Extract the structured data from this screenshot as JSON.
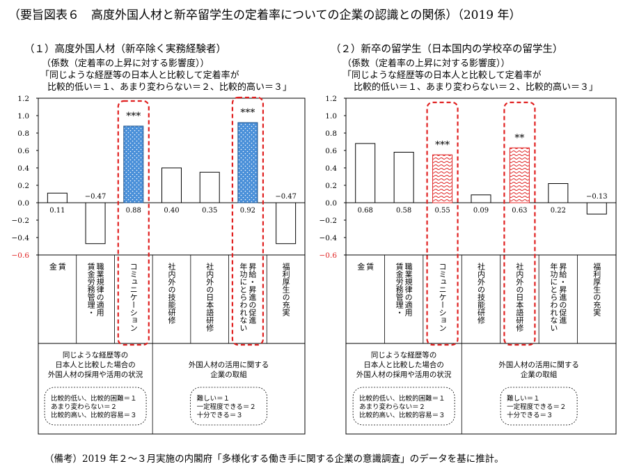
{
  "title": "（要旨図表６　高度外国人材と新卒留学生の定着率についての企業の認識との関係）（2019 年）",
  "note": "（備考）2019 年２～３月実施の内閣府「多様化する働き手に関する企業の意識調査」のデータを基に推計。",
  "colors": {
    "communication_fill": "#4a90d9",
    "highlight_red": "#e02020",
    "bar_outline": "#000000"
  },
  "chart_data": [
    {
      "type": "bar",
      "heading": "（１）高度外国人材（新卒除く実務経験者）",
      "sublabel": "（係数（定着率の上昇に対する影響度））",
      "question_line1": "「同じような経歴等の日本人と比較して定着率が",
      "question_line2": "比較的低い＝１、あまり変わらない＝２、比較的高い＝３」",
      "categories": [
        "賃金",
        "賃金労務管理・職業規律の適用",
        "コミュニケーション",
        "社内外の技能研修",
        "社内外の日本語研修",
        "年功にとらわれない昇給・昇進の促進",
        "福利厚生の充実"
      ],
      "category_lines": [
        [
          "賃",
          "金"
        ],
        [
          "職業規律の適用",
          "賃金労務管理・"
        ],
        [
          "コミュニケーション"
        ],
        [
          "社内外の技能研修"
        ],
        [
          "社内外の日本語研修"
        ],
        [
          "昇給・昇進の促進",
          "年功にとらわれない"
        ],
        [
          "福利厚生の充実"
        ]
      ],
      "values": [
        0.11,
        -0.47,
        0.88,
        0.4,
        0.35,
        0.92,
        -0.47
      ],
      "value_labels": [
        "0.11",
        "−0.47",
        "0.88",
        "0.40",
        "0.35",
        "0.92",
        "−0.47"
      ],
      "significance": [
        "",
        "",
        "***",
        "",
        "",
        "***",
        ""
      ],
      "highlighted": [
        2,
        5
      ],
      "fill_style": [
        "none",
        "none",
        "dots",
        "none",
        "none",
        "dots",
        "none"
      ],
      "ylim": [
        -0.6,
        1.2
      ],
      "yticks": [
        "−0.6",
        "−0.4",
        "−0.2",
        "0.0",
        "0.2",
        "0.4",
        "0.6",
        "0.8",
        "1.0",
        "1.2"
      ],
      "group_left": {
        "lines": [
          "同じような経歴等の",
          "日本人と比較した場合の",
          "外国人材の採用や活用の状況"
        ],
        "scale": [
          "比較的低い、比較的困難＝１",
          "あまり変わらない＝２",
          "比較的高い、比較的容易＝３"
        ]
      },
      "group_right": {
        "lines": [
          "外国人材の活用に関する",
          "企業の取組"
        ],
        "scale": [
          "難しい＝１",
          "一定程度できる＝２",
          "十分できる＝３"
        ]
      }
    },
    {
      "type": "bar",
      "heading": "（２）新卒の留学生（日本国内の学校卒の留学生）",
      "sublabel": "（係数（定着率の上昇に対する影響度））",
      "question_line1": "「同じような経歴等の日本人と比較して定着率が",
      "question_line2": "比較的低い＝１、あまり変わらない＝２、比較的高い＝３」",
      "categories": [
        "賃金",
        "賃金労務管理・職業規律の適用",
        "コミュニケーション",
        "社内外の技能研修",
        "社内外の日本語研修",
        "年功にとらわれない昇給・昇進の促進",
        "福利厚生の充実"
      ],
      "category_lines": [
        [
          "賃",
          "金"
        ],
        [
          "職業規律の適用",
          "賃金労務管理・"
        ],
        [
          "コミュニケーション"
        ],
        [
          "社内外の技能研修"
        ],
        [
          "社内外の日本語研修"
        ],
        [
          "昇給・昇進の促進",
          "年功にとらわれない"
        ],
        [
          "福利厚生の充実"
        ]
      ],
      "values": [
        0.68,
        0.58,
        0.55,
        0.09,
        0.63,
        0.22,
        -0.13
      ],
      "value_labels": [
        "0.68",
        "0.58",
        "0.55",
        "0.09",
        "0.63",
        "0.22",
        "−0.13"
      ],
      "significance": [
        "",
        "",
        "***",
        "",
        "**",
        "",
        ""
      ],
      "highlighted": [
        2,
        4
      ],
      "fill_style": [
        "none",
        "none",
        "waves",
        "none",
        "waves",
        "none",
        "none"
      ],
      "ylim": [
        -0.6,
        1.2
      ],
      "yticks": [
        "−0.6",
        "−0.4",
        "−0.2",
        "0.0",
        "0.2",
        "0.4",
        "0.6",
        "0.8",
        "1.0",
        "1.2"
      ],
      "group_left": {
        "lines": [
          "同じような経歴等の",
          "日本人と比較した場合の",
          "外国人材の採用や活用の状況"
        ],
        "scale": [
          "比較的低い、比較的困難＝１",
          "あまり変わらない＝２",
          "比較的高い、比較的容易＝３"
        ]
      },
      "group_right": {
        "lines": [
          "外国人材の活用に関する",
          "企業の取組"
        ],
        "scale": [
          "難しい＝１",
          "一定程度できる＝２",
          "十分できる＝３"
        ]
      }
    }
  ]
}
